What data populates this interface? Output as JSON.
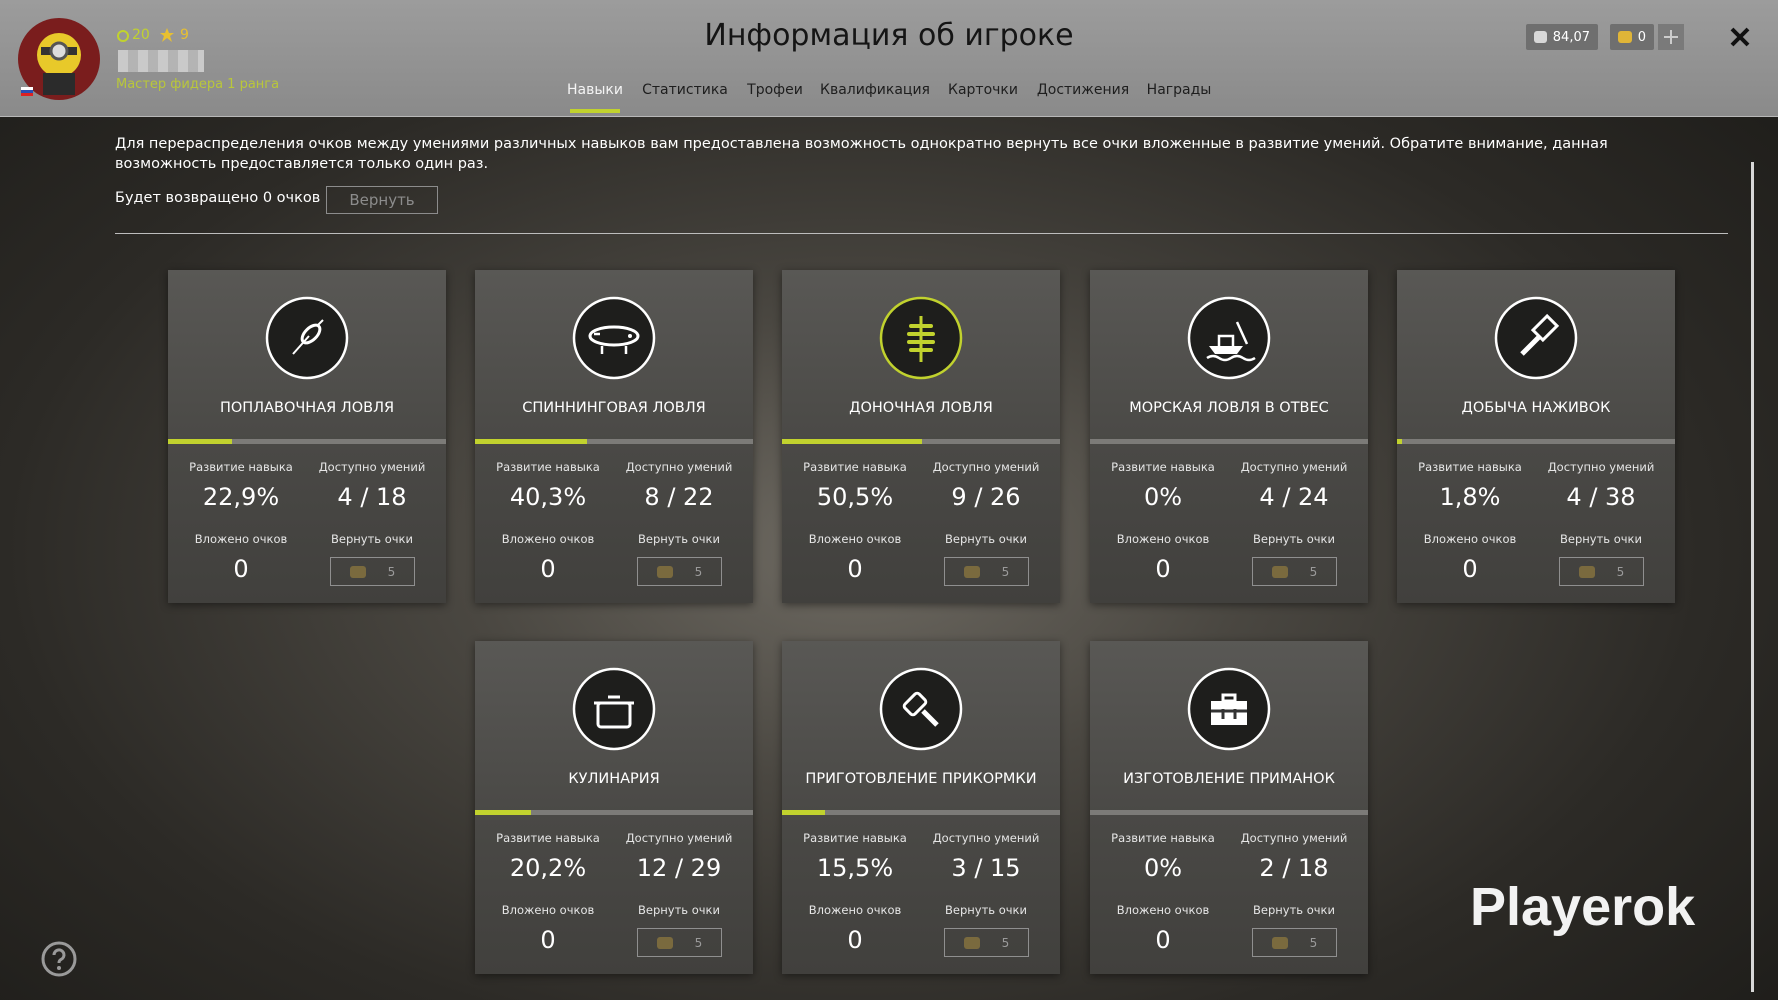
{
  "header": {
    "title": "Информация об игроке",
    "level": "20",
    "stars": "9",
    "rank": "Мастер фидера 1 ранга",
    "silver": "84,07",
    "gold": "0"
  },
  "tabs": [
    "Навыки",
    "Статистика",
    "Трофеи",
    "Квалификация",
    "Карточки",
    "Достижения",
    "Награды"
  ],
  "notice": {
    "text": "Для перераспределения очков между умениями различных навыков вам предоставлена возможность однократно вернуть все очки вложенные в развитие умений. Обратите внимание, данная возможность предоставляется только один раз.",
    "returned": "Будет возвращено 0 очков",
    "button": "Вернуть"
  },
  "labels": {
    "development": "Развитие навыка",
    "available": "Доступно умений",
    "invested": "Вложено очков",
    "refund": "Вернуть очки"
  },
  "skills": [
    {
      "name": "ПОПЛАВОЧНАЯ ЛОВЛЯ",
      "development": {
        "value": 22.9,
        "label": "22,9%"
      },
      "available": "4 / 18",
      "invested": "0",
      "refund_cost": "5"
    },
    {
      "name": "СПИННИНГОВАЯ ЛОВЛЯ",
      "development": {
        "value": 40.3,
        "label": "40,3%"
      },
      "available": "8 / 22",
      "invested": "0",
      "refund_cost": "5"
    },
    {
      "name": "ДОНОЧНАЯ ЛОВЛЯ",
      "development": {
        "value": 50.5,
        "label": "50,5%"
      },
      "available": "9 / 26",
      "invested": "0",
      "refund_cost": "5"
    },
    {
      "name": "МОРСКАЯ ЛОВЛЯ В ОТВЕС",
      "development": {
        "value": 0,
        "label": "0%"
      },
      "available": "4 / 24",
      "invested": "0",
      "refund_cost": "5"
    },
    {
      "name": "ДОБЫЧА НАЖИВОК",
      "development": {
        "value": 1.8,
        "label": "1,8%"
      },
      "available": "4 / 38",
      "invested": "0",
      "refund_cost": "5"
    },
    {
      "name": "КУЛИНАРИЯ",
      "development": {
        "value": 20.2,
        "label": "20,2%"
      },
      "available": "12 / 29",
      "invested": "0",
      "refund_cost": "5"
    },
    {
      "name": "ПРИГОТОВЛЕНИЕ ПРИКОРМКИ",
      "development": {
        "value": 15.5,
        "label": "15,5%"
      },
      "available": "3 / 15",
      "invested": "0",
      "refund_cost": "5"
    },
    {
      "name": "ИЗГОТОВЛЕНИЕ ПРИМАНОК",
      "development": {
        "value": 0,
        "label": "0%"
      },
      "available": "2 / 18",
      "invested": "0",
      "refund_cost": "5"
    }
  ],
  "watermark": "Playerok"
}
